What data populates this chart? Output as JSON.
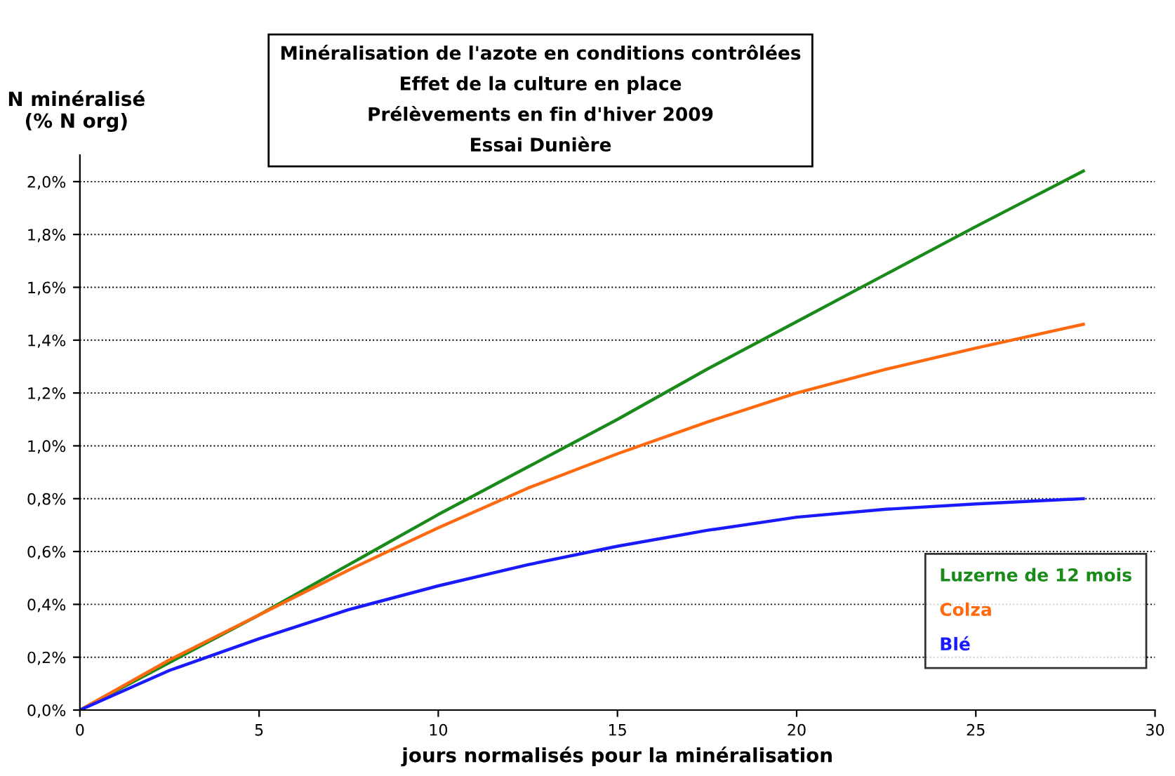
{
  "chart_data": {
    "type": "line",
    "title": "Minéralisation de l'azote en conditions contrôlées\nEffet de la culture en place\nPrélèvements en fin d'hiver 2009\nEssai Dunière",
    "xlabel": "jours normalisés pour la minéralisation",
    "ylabel": "N minéralisé\n(% N org)",
    "x": [
      0,
      2.5,
      5,
      7.5,
      10,
      12.5,
      15,
      17.5,
      20,
      22.5,
      25,
      28
    ],
    "series": [
      {
        "name": "Luzerne de 12 mois",
        "color": "#1a8a1a",
        "values": [
          0,
          0.18,
          0.36,
          0.55,
          0.74,
          0.92,
          1.1,
          1.29,
          1.47,
          1.65,
          1.83,
          2.04
        ]
      },
      {
        "name": "Colza",
        "color": "#ff6a10",
        "values": [
          0,
          0.19,
          0.36,
          0.53,
          0.69,
          0.84,
          0.97,
          1.09,
          1.2,
          1.29,
          1.37,
          1.46
        ]
      },
      {
        "name": "Blé",
        "color": "#1a1aff",
        "values": [
          0,
          0.15,
          0.27,
          0.38,
          0.47,
          0.55,
          0.62,
          0.68,
          0.73,
          0.76,
          0.78,
          0.8
        ]
      }
    ],
    "xlim": [
      0,
      30
    ],
    "xticks": [
      0,
      5,
      10,
      15,
      20,
      25,
      30
    ],
    "ylim": [
      0,
      2.1
    ],
    "yticks": [
      {
        "value": 0,
        "label": "0,0%"
      },
      {
        "value": 0.2,
        "label": "0,2%"
      },
      {
        "value": 0.4,
        "label": "0,4%"
      },
      {
        "value": 0.6,
        "label": "0,6%"
      },
      {
        "value": 0.8,
        "label": "0,8%"
      },
      {
        "value": 1.0,
        "label": "1,0%"
      },
      {
        "value": 1.2,
        "label": "1,2%"
      },
      {
        "value": 1.4,
        "label": "1,4%"
      },
      {
        "value": 1.6,
        "label": "1,6%"
      },
      {
        "value": 1.8,
        "label": "1,8%"
      },
      {
        "value": 2.0,
        "label": "2,0%"
      }
    ],
    "grid": "y",
    "legend": "bottom right",
    "marker": "none",
    "line_style": "solid"
  }
}
